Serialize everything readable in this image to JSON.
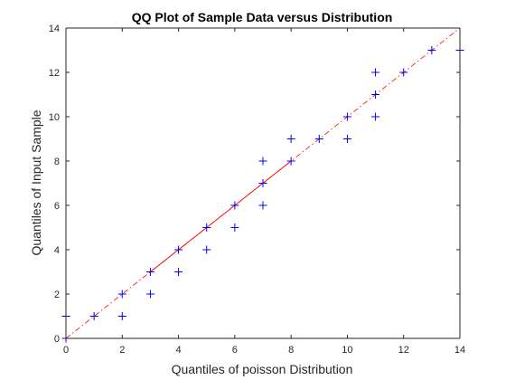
{
  "chart_data": {
    "type": "scatter",
    "title": "QQ Plot of Sample Data versus Distribution",
    "xlabel": "Quantiles of poisson Distribution",
    "ylabel": "Quantiles of Input Sample",
    "xlim": [
      0,
      14
    ],
    "ylim": [
      0,
      14
    ],
    "xticks": [
      "0",
      "2",
      "4",
      "6",
      "8",
      "10",
      "12",
      "14"
    ],
    "yticks": [
      "0",
      "2",
      "4",
      "6",
      "8",
      "10",
      "12",
      "14"
    ],
    "grid": false,
    "legend": "none",
    "marker": "plus",
    "marker_color": "#0000ff",
    "line_color": "#ff0000",
    "reference_line": {
      "solid_from": [
        3,
        3
      ],
      "solid_to": [
        8,
        8
      ],
      "dashdot_from": [
        0,
        0
      ],
      "dashdot_to": [
        14,
        14
      ]
    },
    "series": [
      {
        "points": [
          [
            0,
            0
          ],
          [
            0,
            1
          ],
          [
            1,
            1
          ],
          [
            2,
            1
          ],
          [
            2,
            2
          ],
          [
            3,
            2
          ],
          [
            3,
            3
          ],
          [
            4,
            3
          ],
          [
            4,
            4
          ],
          [
            5,
            4
          ],
          [
            5,
            5
          ],
          [
            6,
            5
          ],
          [
            6,
            6
          ],
          [
            7,
            6
          ],
          [
            7,
            7
          ],
          [
            7,
            8
          ],
          [
            8,
            8
          ],
          [
            8,
            9
          ],
          [
            9,
            9
          ],
          [
            10,
            9
          ],
          [
            10,
            10
          ],
          [
            11,
            10
          ],
          [
            11,
            11
          ],
          [
            11,
            12
          ],
          [
            12,
            12
          ],
          [
            13,
            13
          ],
          [
            14,
            13
          ]
        ]
      }
    ]
  }
}
